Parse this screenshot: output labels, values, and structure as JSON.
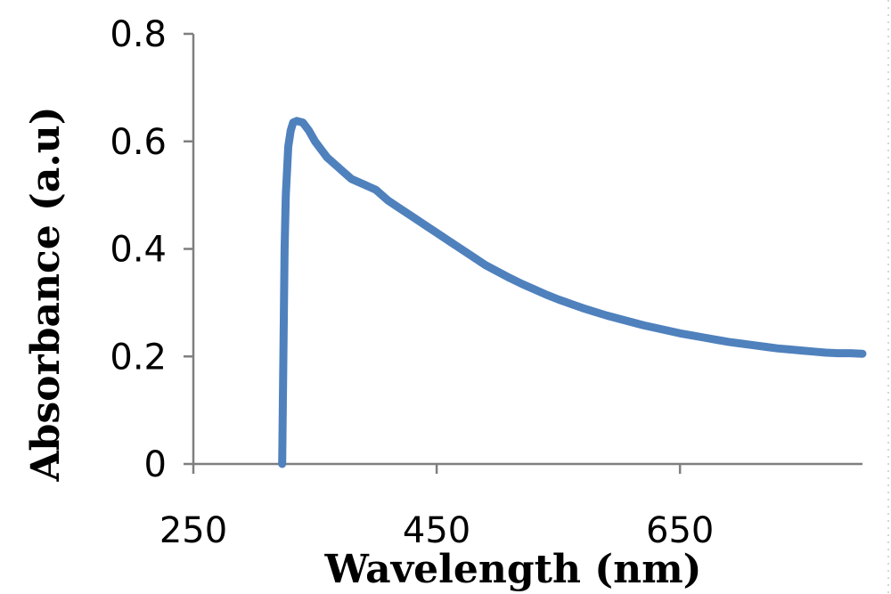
{
  "chart_data": {
    "type": "line",
    "title": "",
    "xlabel": "Wavelength (nm)",
    "ylabel": "Absorbance (a.u)",
    "xlim": [
      250,
      800
    ],
    "ylim": [
      0,
      0.8
    ],
    "xticks": [
      250,
      450,
      650
    ],
    "yticks": [
      0,
      0.2,
      0.4,
      0.6,
      0.8
    ],
    "xtick_labels": [
      "250",
      "450",
      "650"
    ],
    "ytick_labels": [
      "0",
      "0.2",
      "0.4",
      "0.6",
      "0.8"
    ],
    "grid": false,
    "legend": "none",
    "series": [
      {
        "color": "#4f81bd",
        "x": [
          323,
          324,
          325,
          326,
          328,
          330,
          332,
          335,
          340,
          345,
          350,
          355,
          360,
          365,
          370,
          375,
          380,
          385,
          390,
          395,
          400,
          405,
          410,
          420,
          430,
          440,
          450,
          460,
          470,
          480,
          490,
          500,
          510,
          520,
          530,
          540,
          550,
          560,
          570,
          580,
          590,
          600,
          610,
          620,
          630,
          640,
          650,
          660,
          670,
          680,
          690,
          700,
          710,
          720,
          730,
          740,
          750,
          760,
          770,
          780,
          790,
          800
        ],
        "y": [
          0.0,
          0.2,
          0.4,
          0.5,
          0.59,
          0.62,
          0.635,
          0.638,
          0.635,
          0.62,
          0.6,
          0.585,
          0.57,
          0.56,
          0.55,
          0.54,
          0.53,
          0.525,
          0.52,
          0.515,
          0.51,
          0.5,
          0.49,
          0.475,
          0.46,
          0.445,
          0.43,
          0.415,
          0.4,
          0.385,
          0.37,
          0.358,
          0.346,
          0.335,
          0.325,
          0.315,
          0.306,
          0.298,
          0.29,
          0.283,
          0.276,
          0.27,
          0.264,
          0.258,
          0.253,
          0.248,
          0.243,
          0.239,
          0.235,
          0.231,
          0.227,
          0.224,
          0.221,
          0.218,
          0.215,
          0.213,
          0.211,
          0.209,
          0.207,
          0.206,
          0.206,
          0.205
        ]
      }
    ]
  }
}
